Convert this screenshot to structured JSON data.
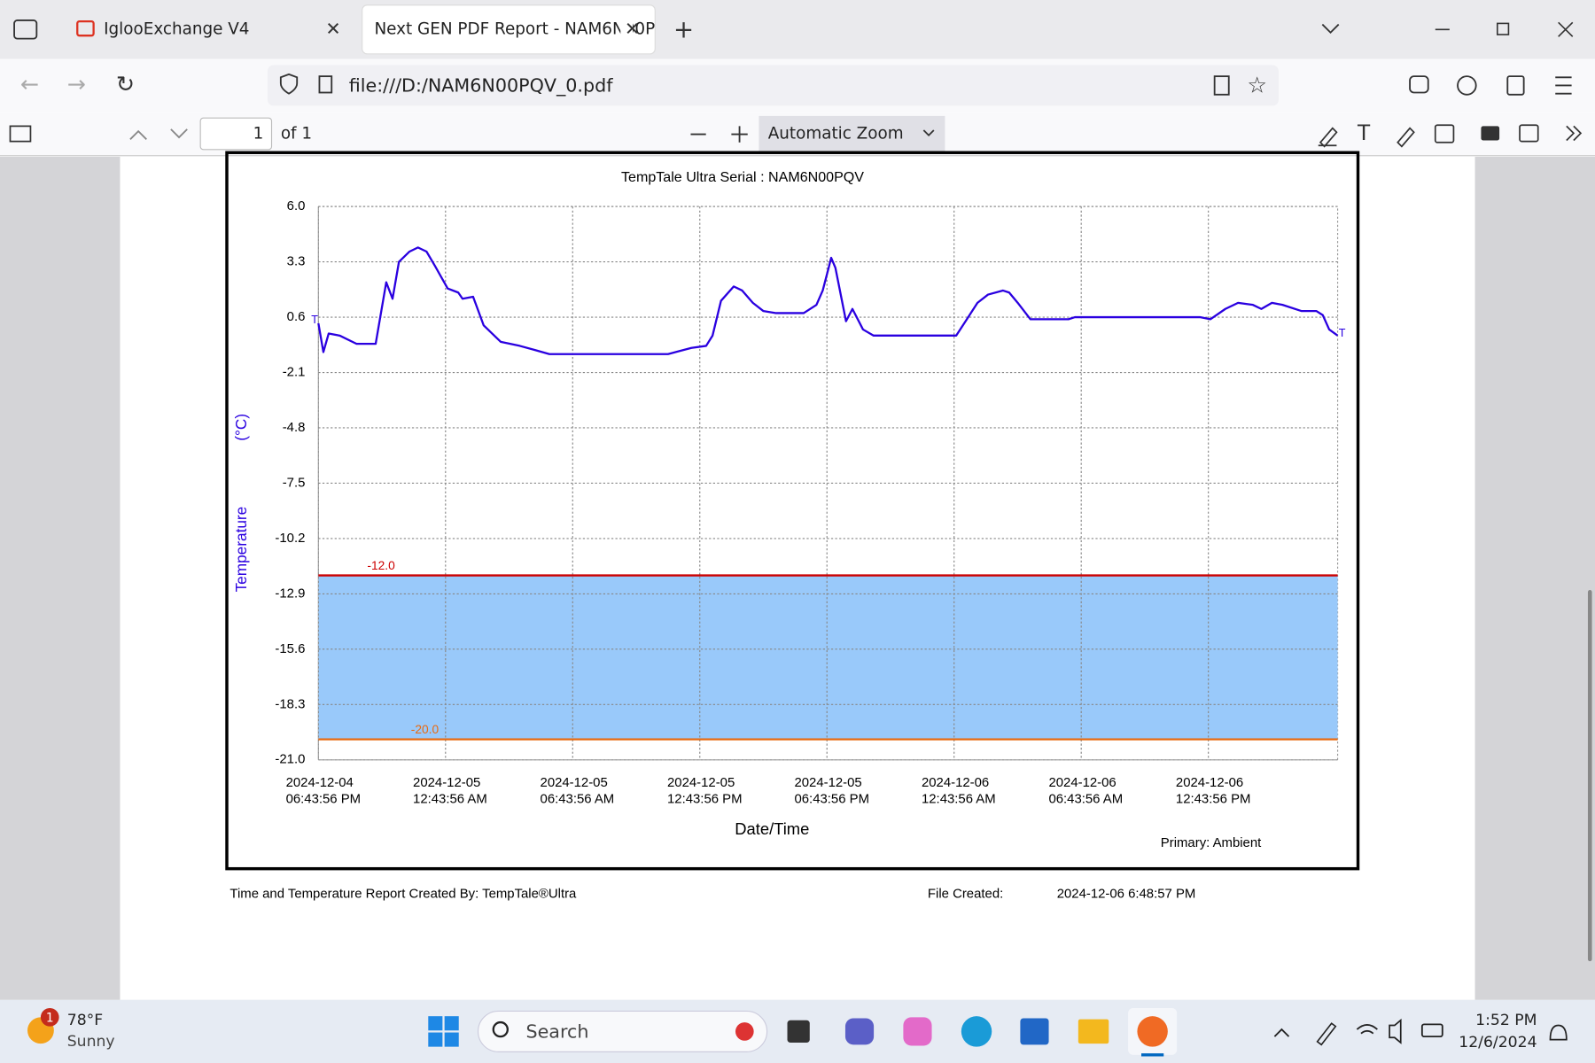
{
  "browser": {
    "tabs": [
      "IglooExchange V4",
      "Next GEN PDF Report - NAM6N00P"
    ],
    "url": "file:///D:/NAM6N00PQV_0.pdf"
  },
  "pdf_toolbar": {
    "page": 1,
    "page_count": "of 1",
    "zoom": "Automatic Zoom"
  },
  "chart_data": {
    "type": "line",
    "title": "TempTale Ultra  Serial : NAM6N00PQV",
    "y_label": [
      "Temperature",
      "(°C)"
    ],
    "x_label": "Date/Time",
    "x": [
      "2024-12-04T18:44",
      "2024-12-04T18:58",
      "2024-12-04T19:13",
      "2024-12-04T19:44",
      "2024-12-04T20:32",
      "2024-12-04T21:26",
      "2024-12-04T21:56",
      "2024-12-04T22:14",
      "2024-12-04T22:32",
      "2024-12-04T23:02",
      "2024-12-04T23:26",
      "2024-12-04T23:50",
      "2024-12-05T00:14",
      "2024-12-05T00:50",
      "2024-12-05T01:20",
      "2024-12-05T01:32",
      "2024-12-05T02:02",
      "2024-12-05T02:32",
      "2024-12-05T03:20",
      "2024-12-05T04:14",
      "2024-12-05T04:56",
      "2024-12-05T05:38",
      "2024-12-05T11:14",
      "2024-12-05T12:20",
      "2024-12-05T13:02",
      "2024-12-05T13:20",
      "2024-12-05T13:44",
      "2024-12-05T14:20",
      "2024-12-05T14:44",
      "2024-12-05T15:14",
      "2024-12-05T15:44",
      "2024-12-05T16:20",
      "2024-12-05T17:38",
      "2024-12-05T18:14",
      "2024-12-05T18:32",
      "2024-12-05T18:50",
      "2024-12-05T18:56",
      "2024-12-05T19:08",
      "2024-12-05T19:38",
      "2024-12-05T19:56",
      "2024-12-05T20:26",
      "2024-12-05T20:56",
      "2024-12-06T00:50",
      "2024-12-06T01:20",
      "2024-12-06T01:50",
      "2024-12-06T02:20",
      "2024-12-06T03:02",
      "2024-12-06T03:20",
      "2024-12-06T03:44",
      "2024-12-06T04:20",
      "2024-12-06T06:08",
      "2024-12-06T06:26",
      "2024-12-06T08:32",
      "2024-12-06T12:20",
      "2024-12-06T12:50",
      "2024-12-06T13:32",
      "2024-12-06T14:08",
      "2024-12-06T14:50",
      "2024-12-06T15:14",
      "2024-12-06T15:44",
      "2024-12-06T16:14",
      "2024-12-06T17:08",
      "2024-12-06T17:50",
      "2024-12-06T18:08",
      "2024-12-06T18:26",
      "2024-12-06T18:50"
    ],
    "series": [
      {
        "name": "Primary: Ambient",
        "color": "#2a00e0",
        "values": [
          0.3,
          -1.1,
          -0.2,
          -0.3,
          -0.7,
          -0.7,
          2.3,
          1.5,
          3.3,
          3.8,
          4.0,
          3.8,
          3.1,
          2.0,
          1.8,
          1.5,
          1.6,
          0.2,
          -0.6,
          -0.8,
          -1.0,
          -1.2,
          -1.2,
          -0.9,
          -0.8,
          -0.3,
          1.4,
          2.1,
          1.9,
          1.3,
          0.9,
          0.8,
          0.8,
          1.2,
          1.9,
          3.1,
          3.5,
          3.0,
          0.4,
          1.0,
          0.0,
          -0.3,
          -0.3,
          0.5,
          1.3,
          1.7,
          1.9,
          1.8,
          1.3,
          0.5,
          0.5,
          0.6,
          0.6,
          0.6,
          0.5,
          1.0,
          1.3,
          1.2,
          1.0,
          1.3,
          1.2,
          0.9,
          0.9,
          0.7,
          0.0,
          -0.3
        ]
      }
    ],
    "end_markers": [
      "T",
      "T"
    ],
    "xlim": [
      "2024-12-04T18:43:56",
      "2024-12-06T18:50:00"
    ],
    "xticks": [
      {
        "value": "2024-12-04T18:43:56",
        "label": [
          "2024-12-04",
          "06:43:56 PM"
        ]
      },
      {
        "value": "2024-12-05T00:43:56",
        "label": [
          "2024-12-05",
          "12:43:56 AM"
        ]
      },
      {
        "value": "2024-12-05T06:43:56",
        "label": [
          "2024-12-05",
          "06:43:56 AM"
        ]
      },
      {
        "value": "2024-12-05T12:43:56",
        "label": [
          "2024-12-05",
          "12:43:56 PM"
        ]
      },
      {
        "value": "2024-12-05T18:43:56",
        "label": [
          "2024-12-05",
          "06:43:56 PM"
        ]
      },
      {
        "value": "2024-12-06T00:43:56",
        "label": [
          "2024-12-06",
          "12:43:56 AM"
        ]
      },
      {
        "value": "2024-12-06T06:43:56",
        "label": [
          "2024-12-06",
          "06:43:56 AM"
        ]
      },
      {
        "value": "2024-12-06T12:43:56",
        "label": [
          "2024-12-06",
          "12:43:56 PM"
        ]
      }
    ],
    "ylim": [
      -21,
      6
    ],
    "yticks": [
      {
        "value": 6,
        "label": "6.0"
      },
      3.3,
      0.6,
      -2.1,
      -4.8,
      -7.5,
      -10.2,
      -12.9,
      -15.6,
      -18.3,
      {
        "value": -21,
        "label": "-21.0"
      }
    ],
    "grid": true,
    "thresholds": [
      {
        "value": -12,
        "label": "-12.0",
        "color": "#cc0000"
      },
      {
        "value": -20,
        "label": "-20.0",
        "color": "#e86a10"
      }
    ],
    "band_color": "#99c9fa"
  },
  "footer": {
    "created_by": "Time and Temperature Report Created By:  TempTale®Ultra",
    "file_created_label": "File Created:",
    "file_created": "2024-12-06  6:48:57 PM"
  },
  "taskbar": {
    "badge": "1",
    "temperature": "78°F",
    "weather": "Sunny",
    "search": "Search",
    "time": "1:52 PM",
    "date": "12/6/2024"
  }
}
